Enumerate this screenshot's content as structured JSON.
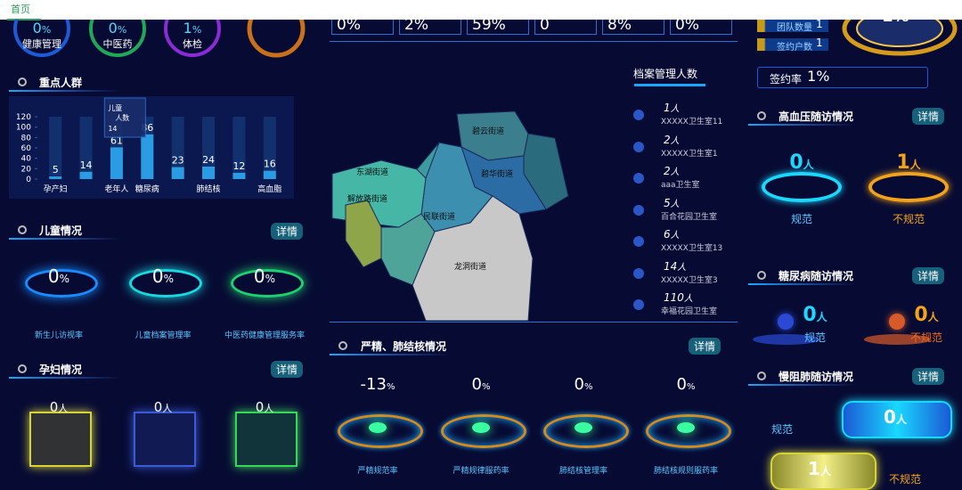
{
  "nav": {
    "tab": "首页"
  },
  "top_gauges": [
    {
      "value": 0,
      "unit": "%",
      "label": "健康管理"
    },
    {
      "value": 0,
      "unit": "%",
      "label": "中医药"
    },
    {
      "value": 1,
      "unit": "%",
      "label": "体检"
    }
  ],
  "top_stats": [
    {
      "value": 0,
      "unit": "%"
    },
    {
      "value": 2,
      "unit": "%"
    },
    {
      "value": 59,
      "unit": "%"
    },
    {
      "value": 0
    },
    {
      "value": 8,
      "unit": "%"
    },
    {
      "value": 0,
      "unit": "%"
    }
  ],
  "sign": {
    "team_label": "团队数量",
    "team_value": 1,
    "household_label": "签约户数",
    "household_value": 1,
    "rate_label": "签约率",
    "rate_value": 1,
    "rate_unit": "%",
    "big_value": 1,
    "big_unit": "%"
  },
  "key_population": {
    "title": "重点人群",
    "tooltip": {
      "name": "儿童",
      "label": "人数",
      "value": 14
    }
  },
  "chart_data": {
    "type": "bar",
    "categories": [
      "孕产妇",
      null,
      "老年人",
      "糖尿病",
      null,
      "肺结核",
      null,
      "高血脂"
    ],
    "values": [
      5,
      14,
      61,
      86,
      23,
      24,
      12,
      16
    ],
    "color": "#2ea8f0",
    "ylim": [
      0,
      120
    ],
    "yticks": [
      0,
      20,
      40,
      60,
      80,
      100,
      120
    ]
  },
  "children": {
    "title": "儿童情况",
    "button": "详情",
    "items": [
      {
        "value": 0,
        "unit": "%",
        "label": "新生儿访视率"
      },
      {
        "value": 0,
        "unit": "%",
        "label": "儿童档案管理率"
      },
      {
        "value": 0,
        "unit": "%",
        "label": "中医药健康管理服务率"
      }
    ]
  },
  "pregnant": {
    "title": "孕妇情况",
    "button": "详情",
    "items": [
      {
        "value": 0,
        "unit": "人"
      },
      {
        "value": 0,
        "unit": "人"
      },
      {
        "value": 0,
        "unit": "人"
      }
    ]
  },
  "map": {
    "districts": [
      "碧云街道",
      "碧华街道",
      "龙洞街道",
      "民联街道",
      "东湖街道",
      "解放路街道"
    ]
  },
  "archives": {
    "title": "档案管理人数",
    "items": [
      {
        "count": 1,
        "unit": "人",
        "name": "XXXXX卫生室11"
      },
      {
        "count": 2,
        "unit": "人",
        "name": "XXXXX卫生室1"
      },
      {
        "count": 2,
        "unit": "人",
        "name": "aaa卫生室"
      },
      {
        "count": 5,
        "unit": "人",
        "name": "百合花园卫生室"
      },
      {
        "count": 6,
        "unit": "人",
        "name": "XXXXX卫生室13"
      },
      {
        "count": 14,
        "unit": "人",
        "name": "XXXXX卫生室3"
      },
      {
        "count": 110,
        "unit": "人",
        "name": "幸福花园卫生室"
      }
    ]
  },
  "mental": {
    "title": "严精、肺结核情况",
    "button": "详情",
    "items": [
      {
        "value": -13,
        "unit": "%",
        "label": "严精规范率"
      },
      {
        "value": 0,
        "unit": "%",
        "label": "严精规律服药率"
      },
      {
        "value": 0,
        "unit": "%",
        "label": "肺结核管理率"
      },
      {
        "value": 0,
        "unit": "%",
        "label": "肺结核规则服药率"
      }
    ]
  },
  "hypertension": {
    "title": "高血压随访情况",
    "button": "详情",
    "normal": {
      "value": 0,
      "unit": "人",
      "label": "规范"
    },
    "abnormal": {
      "value": 1,
      "unit": "人",
      "label": "不规范"
    }
  },
  "diabetes": {
    "title": "糖尿病随访情况",
    "button": "详情",
    "normal": {
      "value": 0,
      "unit": "人",
      "label": "规范"
    },
    "abnormal": {
      "value": 0,
      "unit": "人",
      "label": "不规范"
    }
  },
  "copd": {
    "title": "慢阻肺随访情况",
    "button": "详情",
    "normal": {
      "value": 0,
      "unit": "人",
      "label": "规范"
    },
    "abnormal": {
      "value": 1,
      "unit": "人",
      "label": "不规范"
    }
  }
}
